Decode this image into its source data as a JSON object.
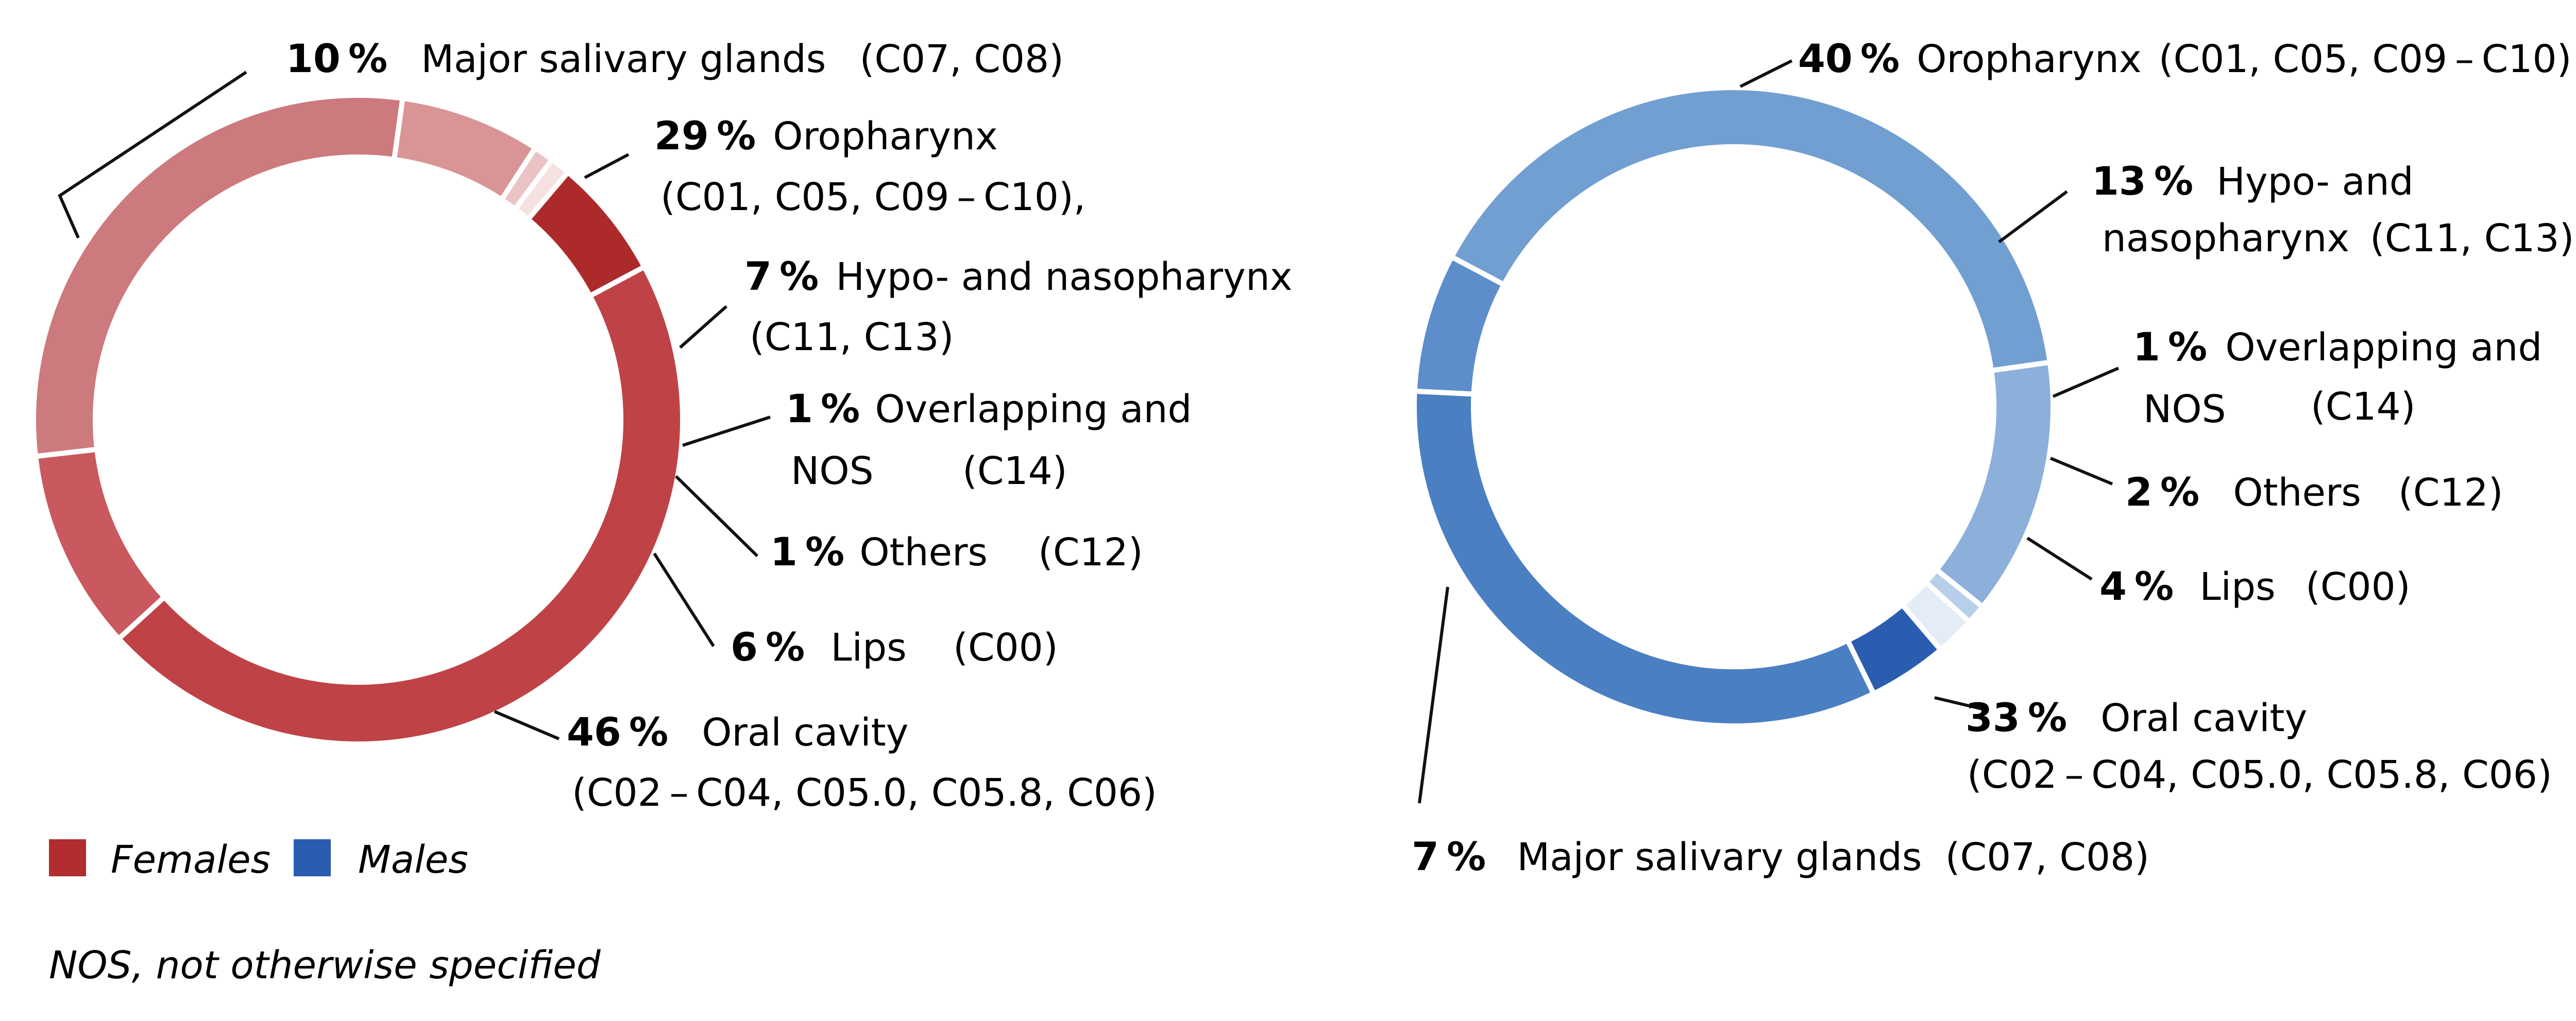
{
  "chart_data": [
    {
      "type": "pie",
      "slices": [
        {
          "name": "Major salivary glands",
          "value": 10,
          "codes": "(C07, C08)",
          "color": "#c9585f"
        },
        {
          "name": "Oropharynx",
          "value": 29,
          "codes": "(C01, C05, C09 – C10),",
          "color": "#cc7a7d"
        },
        {
          "name": "Hypo- and nasopharynx",
          "value": 7,
          "codes": "(C11, C13)",
          "color": "#d99596"
        },
        {
          "name": "Overlapping and NOS",
          "value": 1,
          "codes": "(C14)",
          "color": "#ebc3c4"
        },
        {
          "name": "Others",
          "value": 1,
          "codes": "(C12)",
          "color": "#f6e1e1"
        },
        {
          "name": "Lips",
          "value": 6,
          "codes": "(C00)",
          "color": "#ad2a2b"
        },
        {
          "name": "Oral cavity",
          "value": 46,
          "codes": "(C02 – C04, C05.0, C05.8, C06)",
          "color": "#bf4346"
        }
      ]
    },
    {
      "type": "pie",
      "slices": [
        {
          "name": "Oropharynx",
          "value": 40,
          "codes": "(C01, C05, C09 – C10)",
          "color": "#729fd1"
        },
        {
          "name": "Hypo- and nasopharynx",
          "value": 13,
          "codes": "(C11, C13)",
          "color": "#8cb0da"
        },
        {
          "name": "Overlapping and NOS",
          "value": 1,
          "codes": "(C14)",
          "color": "#b8cfea"
        },
        {
          "name": "Others",
          "value": 2,
          "codes": "(C12)",
          "color": "#e3ecf7"
        },
        {
          "name": "Lips",
          "value": 4,
          "codes": "(C00)",
          "color": "#2a5db0"
        },
        {
          "name": "Oral cavity",
          "value": 33,
          "codes": "(C02 – C04, C05.0, C05.8, C06)",
          "color": "#4a7fc2"
        },
        {
          "name": "Major salivary glands",
          "value": 7,
          "codes": "(C07, C08)",
          "color": "#5d8ecb"
        }
      ]
    }
  ],
  "labels": {
    "female": {
      "salivary": {
        "pct": "10 %",
        "name": "Major salivary glands",
        "codes": "(C07, C08)"
      },
      "oro": {
        "pct": "29 %",
        "name": "Oropharynx",
        "codes": "(C01, C05, C09 – C10),"
      },
      "hypo": {
        "pct": "7 %",
        "name": "Hypo- and nasopharynx",
        "codes": "(C11, C13)"
      },
      "overlap": {
        "pct": "1 %",
        "name": "Overlapping and",
        "name2": "NOS",
        "codes": "(C14)"
      },
      "others": {
        "pct": "1 %",
        "name": "Others",
        "codes": "(C12)"
      },
      "lips": {
        "pct": "6 %",
        "name": "Lips",
        "codes": "(C00)"
      },
      "oral": {
        "pct": "46 %",
        "name": "Oral cavity",
        "codes": "(C02 – C04, C05.0, C05.8, C06)"
      }
    },
    "male": {
      "oro": {
        "pct": "40 %",
        "name": "Oropharynx",
        "codes": "(C01, C05, C09 – C10)"
      },
      "hypo": {
        "pct": "13 %",
        "name": "Hypo- and",
        "name2": "nasopharynx",
        "codes": "(C11, C13)"
      },
      "overlap": {
        "pct": "1 %",
        "name": "Overlapping and",
        "name2": "NOS",
        "codes": "(C14)"
      },
      "others": {
        "pct": "2 %",
        "name": "Others",
        "codes": "(C12)"
      },
      "lips": {
        "pct": "4 %",
        "name": "Lips",
        "codes": "(C00)"
      },
      "oral": {
        "pct": "33 %",
        "name": "Oral cavity",
        "codes": "(C02 – C04, C05.0, C05.8, C06)"
      },
      "salivary": {
        "pct": "7 %",
        "name": "Major salivary glands",
        "codes": "(C07, C08)"
      }
    }
  },
  "legend": {
    "females": {
      "label": "Females",
      "color": "#b22d2f"
    },
    "males": {
      "label": "Males",
      "color": "#2a5db0"
    }
  },
  "footnote": "NOS, not otherwise specified"
}
